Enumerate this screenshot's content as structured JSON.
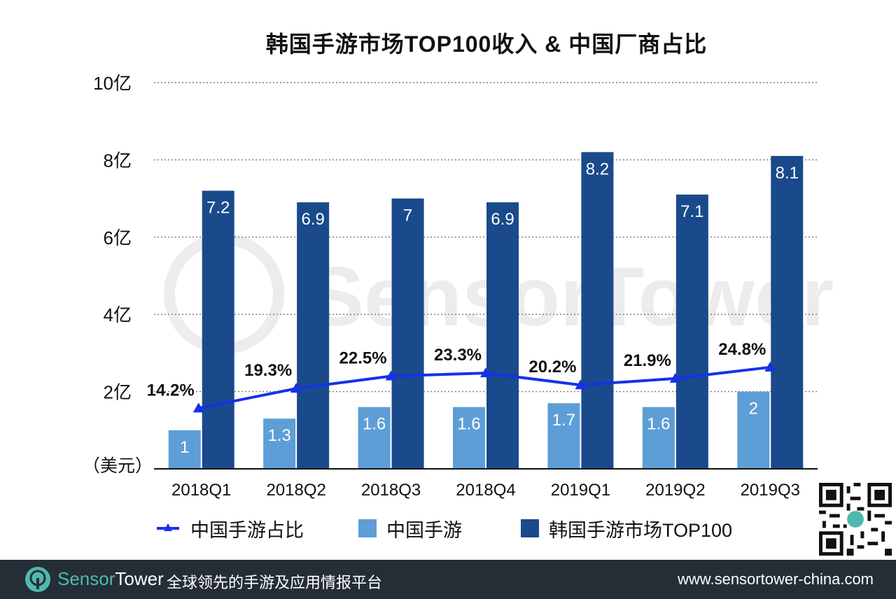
{
  "chart_data": {
    "type": "bar",
    "title": "韩国手游市场TOP100收入 & 中国厂商占比",
    "ylabel": "（美元）",
    "categories": [
      "2018Q1",
      "2018Q2",
      "2018Q3",
      "2018Q4",
      "2019Q1",
      "2019Q2",
      "2019Q3"
    ],
    "ytick_labels": [
      "2亿",
      "4亿",
      "6亿",
      "8亿",
      "10亿"
    ],
    "ylim": [
      0,
      10
    ],
    "grid": "dotted-horizontal",
    "series": [
      {
        "name": "中国手游",
        "type": "bar",
        "color": "#5d9ed6",
        "values": [
          1,
          1.3,
          1.6,
          1.6,
          1.7,
          1.6,
          2
        ],
        "labels": [
          "1",
          "1.3",
          "1.6",
          "1.6",
          "1.7",
          "1.6",
          "2"
        ]
      },
      {
        "name": "韩国手游市场TOP100",
        "type": "bar",
        "color": "#1a4a8c",
        "values": [
          7.2,
          6.9,
          7,
          6.9,
          8.2,
          7.1,
          8.1
        ],
        "labels": [
          "7.2",
          "6.9",
          "7",
          "6.9",
          "8.2",
          "7.1",
          "8.1"
        ]
      },
      {
        "name": "中国手游占比",
        "type": "line",
        "color": "#1432e8",
        "values": [
          14.2,
          19.3,
          22.5,
          23.3,
          20.2,
          21.9,
          24.8
        ],
        "labels": [
          "14.2%",
          "19.3%",
          "22.5%",
          "23.3%",
          "20.2%",
          "21.9%",
          "24.8%"
        ]
      }
    ],
    "legend_position": "bottom"
  },
  "footer": {
    "brand_sensor": "Sensor",
    "brand_tower": "Tower",
    "tagline": "全球领先的手游及应用情报平台",
    "url": "www.sensortower-china.com"
  },
  "watermark": "SensorTower",
  "colors": {
    "footer_bg": "#252e36",
    "brand_accent": "#4fb9ac"
  }
}
